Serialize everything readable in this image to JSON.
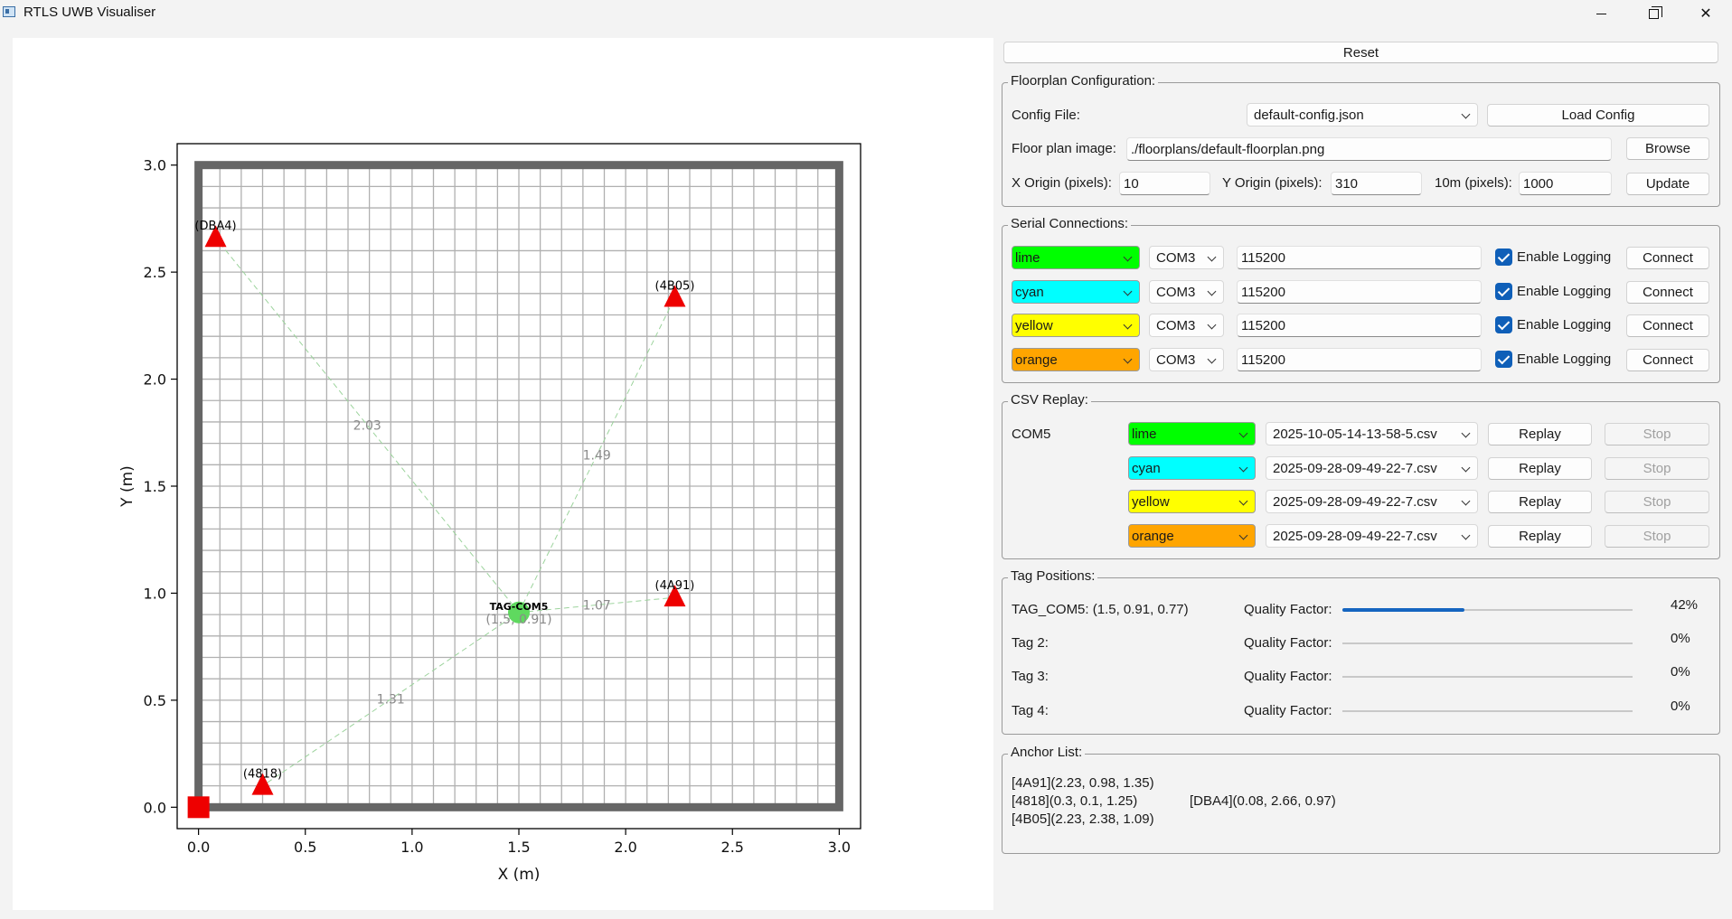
{
  "window": {
    "title": "RTLS UWB Visualiser"
  },
  "chart_data": {
    "type": "scatter",
    "xlabel": "X (m)",
    "ylabel": "Y (m)",
    "xlim": [
      -0.1,
      3.1
    ],
    "ylim": [
      -0.1,
      3.1
    ],
    "xticks": [
      "0.0",
      "0.5",
      "1.0",
      "1.5",
      "2.0",
      "2.5",
      "3.0"
    ],
    "yticks": [
      "0.0",
      "0.5",
      "1.0",
      "1.5",
      "2.0",
      "2.5",
      "3.0"
    ],
    "grid_step": 0.1,
    "grid": true,
    "room": {
      "x": [
        0,
        3
      ],
      "y": [
        0,
        3
      ]
    },
    "origin_marker": {
      "x": 0,
      "y": 0
    },
    "anchors": [
      {
        "label": "(DBA4)",
        "x": 0.08,
        "y": 2.66
      },
      {
        "label": "(4B05)",
        "x": 2.23,
        "y": 2.38
      },
      {
        "label": "(4A91)",
        "x": 2.23,
        "y": 0.98
      },
      {
        "label": "(4818)",
        "x": 0.3,
        "y": 0.1
      }
    ],
    "tag": {
      "label": "TAG-COM5",
      "coords": "(1.5, 0.91)",
      "x": 1.5,
      "y": 0.91,
      "color": "#5fd95f"
    },
    "distances": [
      {
        "to": "(DBA4)",
        "text": "2.03"
      },
      {
        "to": "(4B05)",
        "text": "1.49"
      },
      {
        "to": "(4A91)",
        "text": "1.07"
      },
      {
        "to": "(4818)",
        "text": "1.31"
      }
    ],
    "colors": {
      "anchor": "#ee0000",
      "room": "#666666",
      "grid": "#b0b0b0",
      "line": "#9cd39c"
    }
  },
  "controls": {
    "reset_label": "Reset",
    "floorplan": {
      "title": "Floorplan Configuration:",
      "config_file_label": "Config File:",
      "config_file_value": "default-config.json",
      "load_config_label": "Load Config",
      "floor_image_label": "Floor plan image:",
      "floor_image_value": "./floorplans/default-floorplan.png",
      "browse_label": "Browse",
      "x_origin_label": "X Origin (pixels):",
      "x_origin_value": "10",
      "y_origin_label": "Y Origin (pixels):",
      "y_origin_value": "310",
      "ten_m_label": "10m (pixels):",
      "ten_m_value": "1000",
      "update_label": "Update"
    },
    "serial": {
      "title": "Serial Connections:",
      "rows": [
        {
          "color": "lime",
          "hex": "#00ff00",
          "port": "COM3",
          "baud": "115200",
          "logging": "Enable Logging",
          "connect": "Connect"
        },
        {
          "color": "cyan",
          "hex": "#00ffff",
          "port": "COM3",
          "baud": "115200",
          "logging": "Enable Logging",
          "connect": "Connect"
        },
        {
          "color": "yellow",
          "hex": "#ffff00",
          "port": "COM3",
          "baud": "115200",
          "logging": "Enable Logging",
          "connect": "Connect"
        },
        {
          "color": "orange",
          "hex": "#ffa500",
          "port": "COM3",
          "baud": "115200",
          "logging": "Enable Logging",
          "connect": "Connect"
        }
      ]
    },
    "replay": {
      "title": "CSV Replay:",
      "source_label": "COM5",
      "rows": [
        {
          "color": "lime",
          "hex": "#00ff00",
          "file": "2025-10-05-14-13-58-5.csv",
          "replay": "Replay",
          "stop": "Stop"
        },
        {
          "color": "cyan",
          "hex": "#00ffff",
          "file": "2025-09-28-09-49-22-7.csv",
          "replay": "Replay",
          "stop": "Stop"
        },
        {
          "color": "yellow",
          "hex": "#ffff00",
          "file": "2025-09-28-09-49-22-7.csv",
          "replay": "Replay",
          "stop": "Stop"
        },
        {
          "color": "orange",
          "hex": "#ffa500",
          "file": "2025-09-28-09-49-22-7.csv",
          "replay": "Replay",
          "stop": "Stop"
        }
      ]
    },
    "tags": {
      "title": "Tag Positions:",
      "rows": [
        {
          "name": "TAG_COM5: (1.5, 0.91, 0.77)",
          "qf_label": "Quality Factor:",
          "qf": 0.42,
          "qf_text": "42%"
        },
        {
          "name": "Tag 2:",
          "qf_label": "Quality Factor:",
          "qf": 0,
          "qf_text": "0%"
        },
        {
          "name": "Tag 3:",
          "qf_label": "Quality Factor:",
          "qf": 0,
          "qf_text": "0%"
        },
        {
          "name": "Tag 4:",
          "qf_label": "Quality Factor:",
          "qf": 0,
          "qf_text": "0%"
        }
      ]
    },
    "anchors": {
      "title": "Anchor List:",
      "entries": [
        "[4A91](2.23, 0.98, 1.35)",
        "[4818](0.3, 0.1, 1.25)",
        "[DBA4](0.08, 2.66, 0.97)",
        "[4B05](2.23, 2.38, 1.09)"
      ]
    }
  }
}
